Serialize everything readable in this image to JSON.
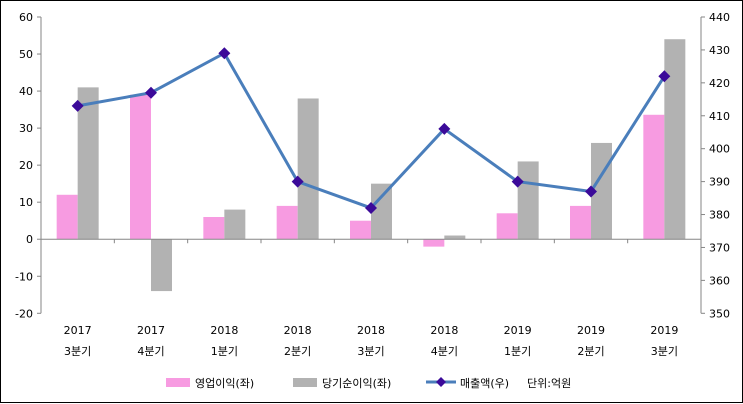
{
  "chart_data": {
    "type": "bar",
    "title": "",
    "categories": [
      [
        "2017",
        "3분기"
      ],
      [
        "2017",
        "4분기"
      ],
      [
        "2018",
        "1분기"
      ],
      [
        "2018",
        "2분기"
      ],
      [
        "2018",
        "3분기"
      ],
      [
        "2018",
        "4분기"
      ],
      [
        "2019",
        "1분기"
      ],
      [
        "2019",
        "2분기"
      ],
      [
        "2019",
        "3분기"
      ]
    ],
    "series": [
      {
        "name": "영업이익(좌)",
        "type": "bar",
        "axis": "left",
        "color": "#f79be1",
        "values": [
          12,
          39,
          6,
          9,
          5,
          -2,
          7,
          9,
          33.6
        ]
      },
      {
        "name": "당기순이익(좌)",
        "type": "bar",
        "axis": "left",
        "color": "#b2b2b2",
        "values": [
          41,
          -14,
          8,
          38,
          15,
          1,
          21,
          26,
          54
        ]
      },
      {
        "name": "매출액(우)",
        "type": "line",
        "axis": "right",
        "color": "#4a7ebb",
        "marker_color": "#3b0a99",
        "values": [
          413,
          417,
          429,
          390,
          382,
          406,
          390,
          387,
          422
        ]
      }
    ],
    "left_axis": {
      "ylim": [
        -20,
        60
      ],
      "ticks": [
        -20,
        -10,
        0,
        10,
        20,
        30,
        40,
        50,
        60
      ]
    },
    "right_axis": {
      "ylim": [
        350,
        440
      ],
      "ticks": [
        350,
        360,
        370,
        380,
        390,
        400,
        410,
        420,
        430,
        440
      ]
    },
    "unit_note": "단위:억원",
    "legend_position": "bottom",
    "grid": false
  }
}
